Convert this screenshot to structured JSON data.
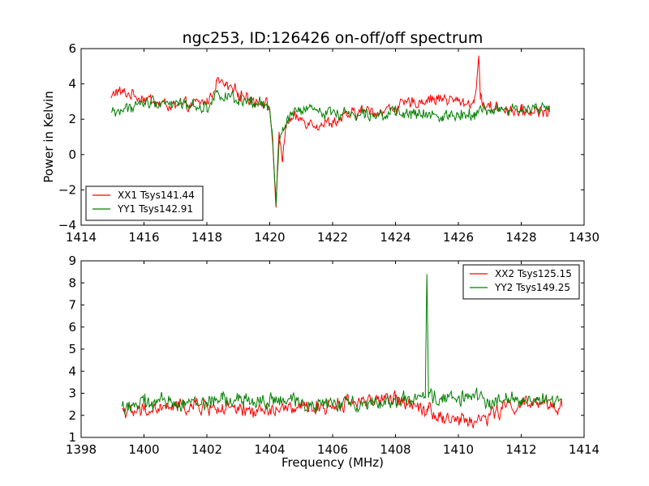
{
  "title": "ngc253, ID:126426 on-off/off spectrum",
  "chart_data": [
    {
      "type": "line",
      "title": "ngc253, ID:126426 on-off/off spectrum",
      "xlabel": "",
      "ylabel": "Power in Kelvin",
      "xlim": [
        1414,
        1430
      ],
      "ylim": [
        -4,
        6
      ],
      "xticks": [
        1414,
        1416,
        1418,
        1420,
        1422,
        1424,
        1426,
        1428,
        1430
      ],
      "yticks": [
        -4,
        -2,
        0,
        2,
        4,
        6
      ],
      "legend": "lower-left",
      "series": [
        {
          "name": "XX1 Tsys141.44",
          "color": "#ff0000",
          "x": [
            1414.95,
            1415.1,
            1415.3,
            1415.6,
            1416.0,
            1416.5,
            1417.0,
            1417.5,
            1418.0,
            1418.15,
            1418.3,
            1418.6,
            1419.0,
            1419.4,
            1419.8,
            1420.0,
            1420.1,
            1420.2,
            1420.3,
            1420.4,
            1420.5,
            1420.7,
            1421.0,
            1421.5,
            1422.0,
            1422.5,
            1423.0,
            1423.5,
            1424.0,
            1424.5,
            1425.0,
            1425.5,
            1426.0,
            1426.5,
            1426.65,
            1426.7,
            1426.75,
            1427.0,
            1427.5,
            1428.0,
            1428.5,
            1428.9
          ],
          "y": [
            3.2,
            3.6,
            3.5,
            3.4,
            3.2,
            2.9,
            2.7,
            2.8,
            3.0,
            3.3,
            4.2,
            3.9,
            3.5,
            3.1,
            3.0,
            2.6,
            0.5,
            -3.0,
            1.2,
            -0.4,
            1.6,
            2.0,
            2.0,
            1.7,
            1.8,
            2.2,
            2.5,
            2.4,
            2.7,
            2.9,
            3.1,
            3.2,
            3.0,
            2.9,
            5.6,
            3.1,
            2.9,
            2.7,
            2.6,
            2.4,
            2.5,
            2.4
          ]
        },
        {
          "name": "YY1 Tsys142.91",
          "color": "#008000",
          "x": [
            1414.95,
            1415.3,
            1415.6,
            1416.0,
            1416.5,
            1417.0,
            1417.5,
            1418.0,
            1418.15,
            1418.3,
            1418.6,
            1419.0,
            1419.4,
            1419.8,
            1420.0,
            1420.1,
            1420.2,
            1420.3,
            1420.4,
            1420.5,
            1420.7,
            1421.0,
            1421.5,
            1422.0,
            1422.5,
            1423.0,
            1423.5,
            1424.0,
            1424.5,
            1425.0,
            1425.5,
            1426.0,
            1426.5,
            1427.0,
            1427.5,
            1428.0,
            1428.5,
            1428.9
          ],
          "y": [
            2.4,
            2.5,
            2.7,
            2.9,
            3.0,
            2.9,
            2.8,
            2.7,
            2.8,
            3.6,
            3.3,
            3.0,
            2.8,
            2.9,
            2.5,
            0.8,
            -2.9,
            0.6,
            1.3,
            1.7,
            2.3,
            2.5,
            2.5,
            2.4,
            2.3,
            2.4,
            2.3,
            2.3,
            2.3,
            2.2,
            2.2,
            2.3,
            2.4,
            2.5,
            2.6,
            2.5,
            2.6,
            2.6
          ]
        }
      ]
    },
    {
      "type": "line",
      "title": "",
      "xlabel": "Frequency (MHz)",
      "ylabel": "",
      "xlim": [
        1398,
        1414
      ],
      "ylim": [
        1,
        9
      ],
      "xticks": [
        1398,
        1400,
        1402,
        1404,
        1406,
        1408,
        1410,
        1412,
        1414
      ],
      "yticks": [
        1,
        2,
        3,
        4,
        5,
        6,
        7,
        8,
        9
      ],
      "legend": "top-right",
      "series": [
        {
          "name": "XX2 Tsys125.15",
          "color": "#ff0000",
          "x": [
            1399.3,
            1399.6,
            1400.0,
            1400.5,
            1401.0,
            1401.5,
            1402.0,
            1402.5,
            1403.0,
            1403.5,
            1404.0,
            1404.5,
            1405.0,
            1405.5,
            1406.0,
            1406.5,
            1407.0,
            1407.5,
            1408.0,
            1408.5,
            1409.0,
            1409.05,
            1409.5,
            1410.0,
            1410.5,
            1411.0,
            1411.5,
            1412.0,
            1412.5,
            1413.0,
            1413.3
          ],
          "y": [
            2.3,
            2.1,
            2.2,
            2.3,
            2.4,
            2.4,
            2.4,
            2.3,
            2.2,
            2.2,
            2.2,
            2.3,
            2.3,
            2.4,
            2.4,
            2.6,
            2.7,
            2.7,
            2.7,
            2.6,
            2.3,
            2.3,
            1.9,
            1.8,
            1.7,
            2.0,
            2.4,
            2.5,
            2.5,
            2.4,
            2.4
          ]
        },
        {
          "name": "YY2 Tsys149.25",
          "color": "#008000",
          "x": [
            1399.3,
            1399.6,
            1400.0,
            1400.5,
            1401.0,
            1401.5,
            1402.0,
            1402.5,
            1403.0,
            1403.5,
            1404.0,
            1404.5,
            1405.0,
            1405.5,
            1406.0,
            1406.5,
            1407.0,
            1407.5,
            1408.0,
            1408.5,
            1408.95,
            1409.0,
            1409.05,
            1409.5,
            1410.0,
            1410.5,
            1411.0,
            1411.5,
            1412.0,
            1412.5,
            1413.0,
            1413.3
          ],
          "y": [
            2.4,
            2.5,
            2.5,
            2.6,
            2.6,
            2.6,
            2.6,
            2.7,
            2.7,
            2.6,
            2.7,
            2.6,
            2.6,
            2.5,
            2.5,
            2.5,
            2.6,
            2.6,
            2.7,
            2.7,
            2.8,
            8.4,
            2.8,
            2.8,
            2.8,
            2.8,
            2.7,
            2.7,
            2.7,
            2.7,
            2.7,
            2.7
          ]
        }
      ]
    }
  ]
}
